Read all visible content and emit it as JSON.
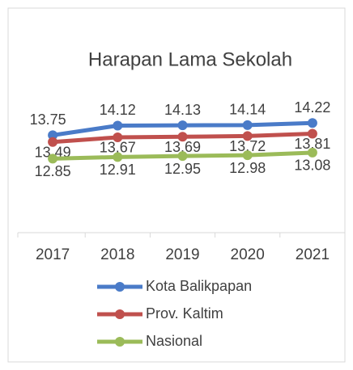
{
  "chart_data": {
    "type": "line",
    "title": "Harapan Lama Sekolah",
    "categories": [
      "2017",
      "2018",
      "2019",
      "2020",
      "2021"
    ],
    "series": [
      {
        "name": "Kota Balikpapan",
        "color": "#4a7bc8",
        "values": [
          13.75,
          14.12,
          14.13,
          14.14,
          14.22
        ]
      },
      {
        "name": "Prov. Kaltim",
        "color": "#c0504d",
        "values": [
          13.49,
          13.67,
          13.69,
          13.72,
          13.81
        ]
      },
      {
        "name": "Nasional",
        "color": "#9bbb59",
        "values": [
          12.85,
          12.91,
          12.95,
          12.98,
          13.08
        ]
      }
    ],
    "ylim": [
      10,
      16
    ],
    "legend": "bottom"
  }
}
